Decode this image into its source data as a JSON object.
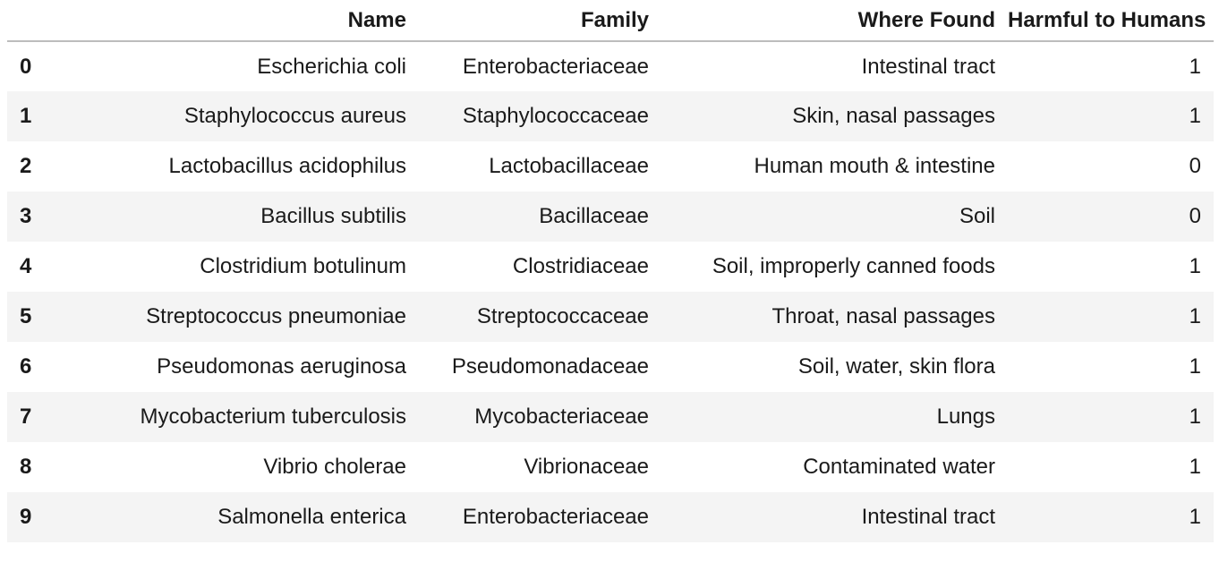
{
  "table": {
    "columns": [
      "Name",
      "Family",
      "Where Found",
      "Harmful to Humans"
    ],
    "rows": [
      {
        "index": "0",
        "name": "Escherichia coli",
        "family": "Enterobacteriaceae",
        "where_found": "Intestinal tract",
        "harmful": "1"
      },
      {
        "index": "1",
        "name": "Staphylococcus aureus",
        "family": "Staphylococcaceae",
        "where_found": "Skin, nasal passages",
        "harmful": "1"
      },
      {
        "index": "2",
        "name": "Lactobacillus acidophilus",
        "family": "Lactobacillaceae",
        "where_found": "Human mouth & intestine",
        "harmful": "0"
      },
      {
        "index": "3",
        "name": "Bacillus subtilis",
        "family": "Bacillaceae",
        "where_found": "Soil",
        "harmful": "0"
      },
      {
        "index": "4",
        "name": "Clostridium botulinum",
        "family": "Clostridiaceae",
        "where_found": "Soil, improperly canned foods",
        "harmful": "1"
      },
      {
        "index": "5",
        "name": "Streptococcus pneumoniae",
        "family": "Streptococcaceae",
        "where_found": "Throat, nasal passages",
        "harmful": "1"
      },
      {
        "index": "6",
        "name": "Pseudomonas aeruginosa",
        "family": "Pseudomonadaceae",
        "where_found": "Soil, water, skin flora",
        "harmful": "1"
      },
      {
        "index": "7",
        "name": "Mycobacterium tuberculosis",
        "family": "Mycobacteriaceae",
        "where_found": "Lungs",
        "harmful": "1"
      },
      {
        "index": "8",
        "name": "Vibrio cholerae",
        "family": "Vibrionaceae",
        "where_found": "Contaminated water",
        "harmful": "1"
      },
      {
        "index": "9",
        "name": "Salmonella enterica",
        "family": "Enterobacteriaceae",
        "where_found": "Intestinal tract",
        "harmful": "1"
      }
    ]
  },
  "colors": {
    "stripe": "#f4f4f4",
    "header_rule": "#bdbdbd",
    "text": "#1a1a1a"
  }
}
